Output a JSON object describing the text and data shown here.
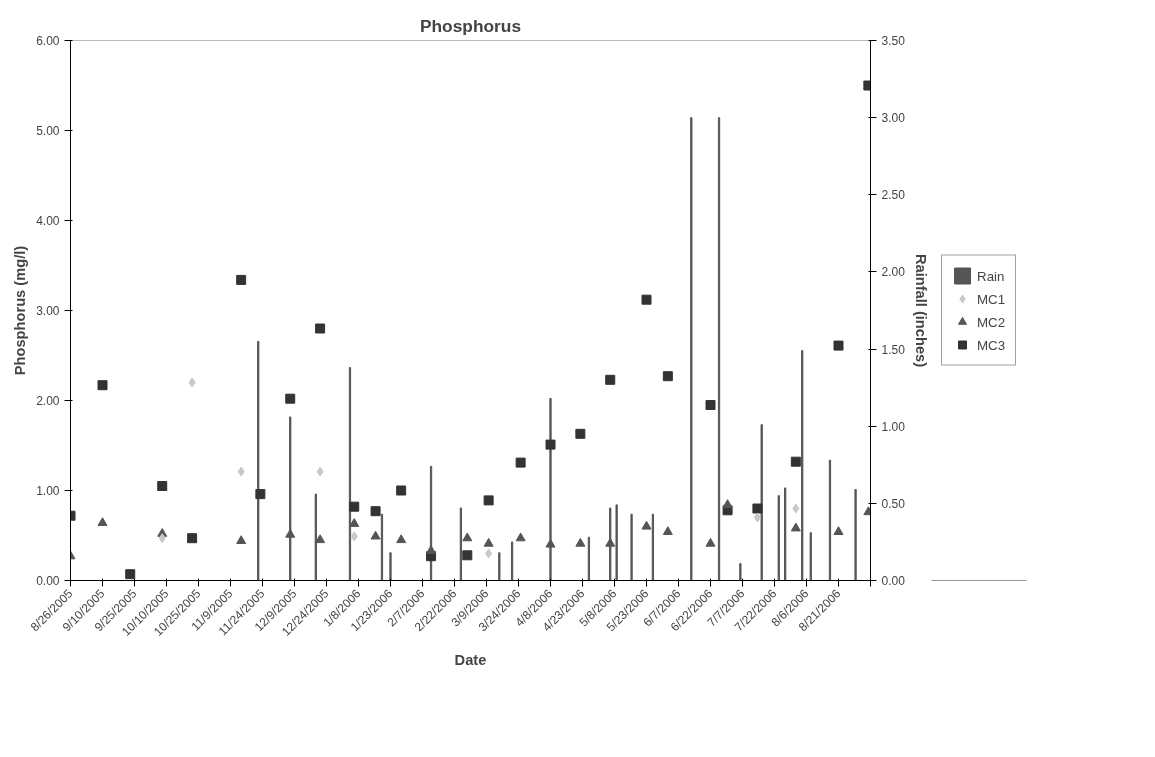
{
  "chart_data": {
    "type": "scatter",
    "title": "Phosphorus",
    "xlabel": "Date",
    "ylabel": "Phosphorus (mg/l)",
    "y2label": "Rainfall (inches)",
    "xlim": [
      "2005-08-26",
      "2006-09-05"
    ],
    "xticks": [
      {
        "value": "2005-08-26",
        "label": "8/26/2005"
      },
      {
        "value": "2005-09-10",
        "label": "9/10/2005"
      },
      {
        "value": "2005-09-25",
        "label": "9/25/2005"
      },
      {
        "value": "2005-10-10",
        "label": "10/10/2005"
      },
      {
        "value": "2005-10-25",
        "label": "10/25/2005"
      },
      {
        "value": "2005-11-09",
        "label": "11/9/2005"
      },
      {
        "value": "2005-11-24",
        "label": "11/24/2005"
      },
      {
        "value": "2005-12-09",
        "label": "12/9/2005"
      },
      {
        "value": "2005-12-24",
        "label": "12/24/2005"
      },
      {
        "value": "2006-01-08",
        "label": "1/8/2006"
      },
      {
        "value": "2006-01-23",
        "label": "1/23/2006"
      },
      {
        "value": "2006-02-07",
        "label": "2/7/2006"
      },
      {
        "value": "2006-02-22",
        "label": "2/22/2006"
      },
      {
        "value": "2006-03-09",
        "label": "3/9/2006"
      },
      {
        "value": "2006-03-24",
        "label": "3/24/2006"
      },
      {
        "value": "2006-04-08",
        "label": "4/8/2006"
      },
      {
        "value": "2006-04-23",
        "label": "4/23/2006"
      },
      {
        "value": "2006-05-08",
        "label": "5/8/2006"
      },
      {
        "value": "2006-05-23",
        "label": "5/23/2006"
      },
      {
        "value": "2006-06-07",
        "label": "6/7/2006"
      },
      {
        "value": "2006-06-22",
        "label": "6/22/2006"
      },
      {
        "value": "2006-07-07",
        "label": "7/7/2006"
      },
      {
        "value": "2006-07-22",
        "label": "7/22/2006"
      },
      {
        "value": "2006-08-06",
        "label": "8/6/2006"
      },
      {
        "value": "2006-08-21",
        "label": "8/21/2006"
      },
      {
        "value": "2006-09-05",
        "label": null
      }
    ],
    "ylim": [
      0,
      6
    ],
    "yticks": [
      {
        "value": 0,
        "label": "0.00"
      },
      {
        "value": 1,
        "label": "1.00"
      },
      {
        "value": 2,
        "label": "2.00"
      },
      {
        "value": 3,
        "label": "3.00"
      },
      {
        "value": 4,
        "label": "4.00"
      },
      {
        "value": 5,
        "label": "5.00"
      },
      {
        "value": 6,
        "label": "6.00"
      }
    ],
    "y2lim": [
      0,
      3.5
    ],
    "y2ticks": [
      {
        "value": 0,
        "label": "0.00"
      },
      {
        "value": 0.5,
        "label": "0.50"
      },
      {
        "value": 1,
        "label": "1.00"
      },
      {
        "value": 1.5,
        "label": "1.50"
      },
      {
        "value": 2,
        "label": "2.00"
      },
      {
        "value": 2.5,
        "label": "2.50"
      },
      {
        "value": 3,
        "label": "3.00"
      },
      {
        "value": 3.5,
        "label": "3.50"
      }
    ],
    "grid": false,
    "legend": "right",
    "series": [
      {
        "name": "Rain",
        "type": "bar",
        "axis": "y2",
        "color": "#555555",
        "x": [
          "2005-11-22",
          "2005-12-07",
          "2005-12-19",
          "2006-01-04",
          "2006-01-19",
          "2006-01-23",
          "2006-02-11",
          "2006-02-25",
          "2006-03-15",
          "2006-03-21",
          "2006-04-08",
          "2006-04-26",
          "2006-05-06",
          "2006-05-09",
          "2006-05-16",
          "2006-05-26",
          "2006-06-13",
          "2006-06-26",
          "2006-07-06",
          "2006-07-16",
          "2006-07-24",
          "2006-07-27",
          "2006-08-04",
          "2006-08-08",
          "2006-08-17",
          "2006-08-29"
        ],
        "values": [
          1.55,
          1.06,
          0.56,
          1.38,
          0.43,
          0.18,
          0.74,
          0.47,
          0.18,
          0.25,
          1.18,
          0.28,
          0.47,
          0.49,
          0.43,
          0.43,
          3.0,
          3.0,
          0.11,
          1.01,
          0.55,
          0.6,
          1.49,
          0.31,
          0.78,
          0.59
        ]
      },
      {
        "name": "MC1",
        "marker": "diamond",
        "color": "#c8c8c8",
        "x": [
          "2005-10-08",
          "2005-10-22",
          "2005-11-14",
          "2005-12-21",
          "2006-01-06",
          "2006-03-10",
          "2006-07-14",
          "2006-08-01"
        ],
        "values": [
          0.47,
          2.2,
          1.21,
          1.21,
          0.49,
          0.3,
          0.7,
          0.8
        ]
      },
      {
        "name": "MC2",
        "marker": "triangle",
        "color": "#555555",
        "x": [
          "2005-08-26",
          "2005-09-10",
          "2005-10-08",
          "2005-11-14",
          "2005-12-07",
          "2005-12-21",
          "2006-01-06",
          "2006-01-16",
          "2006-01-28",
          "2006-02-11",
          "2006-02-28",
          "2006-03-10",
          "2006-03-25",
          "2006-04-08",
          "2006-04-22",
          "2006-05-06",
          "2006-05-23",
          "2006-06-02",
          "2006-06-22",
          "2006-06-30",
          "2006-08-01",
          "2006-08-21",
          "2006-09-04"
        ],
        "values": [
          0.27,
          0.64,
          0.52,
          0.44,
          0.51,
          0.45,
          0.63,
          0.49,
          0.45,
          0.33,
          0.47,
          0.41,
          0.47,
          0.4,
          0.41,
          0.41,
          0.6,
          0.54,
          0.41,
          0.84,
          0.58,
          0.54,
          0.76
        ]
      },
      {
        "name": "MC3",
        "marker": "square",
        "color": "#333333",
        "x": [
          "2005-08-26",
          "2005-09-10",
          "2005-09-23",
          "2005-10-08",
          "2005-10-22",
          "2005-11-14",
          "2005-11-23",
          "2005-12-07",
          "2005-12-21",
          "2006-01-06",
          "2006-01-16",
          "2006-01-28",
          "2006-02-11",
          "2006-02-28",
          "2006-03-10",
          "2006-03-25",
          "2006-04-08",
          "2006-04-22",
          "2006-05-06",
          "2006-05-23",
          "2006-06-02",
          "2006-06-22",
          "2006-06-30",
          "2006-07-14",
          "2006-08-01",
          "2006-08-21",
          "2006-09-04"
        ],
        "values": [
          0.72,
          2.17,
          0.07,
          1.05,
          0.47,
          3.34,
          0.96,
          2.02,
          2.8,
          0.82,
          0.77,
          1.0,
          0.27,
          0.28,
          0.89,
          1.31,
          1.51,
          1.63,
          2.23,
          3.12,
          2.27,
          1.95,
          0.78,
          0.8,
          1.32,
          2.61,
          5.5
        ]
      }
    ]
  }
}
